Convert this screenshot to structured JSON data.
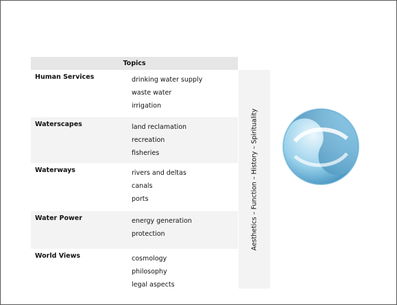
{
  "table": {
    "header": "Topics",
    "rows": [
      {
        "category": "Human Services",
        "items": [
          "drinking water supply",
          "waste water",
          "irrigation"
        ]
      },
      {
        "category": "Waterscapes",
        "items": [
          "land reclamation",
          "recreation",
          "fisheries"
        ]
      },
      {
        "category": "Waterways",
        "items": [
          "rivers and deltas",
          "canals",
          "ports"
        ]
      },
      {
        "category": "Water Power",
        "items": [
          "energy generation",
          "protection"
        ]
      },
      {
        "category": "World Views",
        "items": [
          "cosmology",
          "philosophy",
          "legal aspects"
        ]
      }
    ],
    "side_label": "Aesthetics – Function – History – Spirituality"
  }
}
